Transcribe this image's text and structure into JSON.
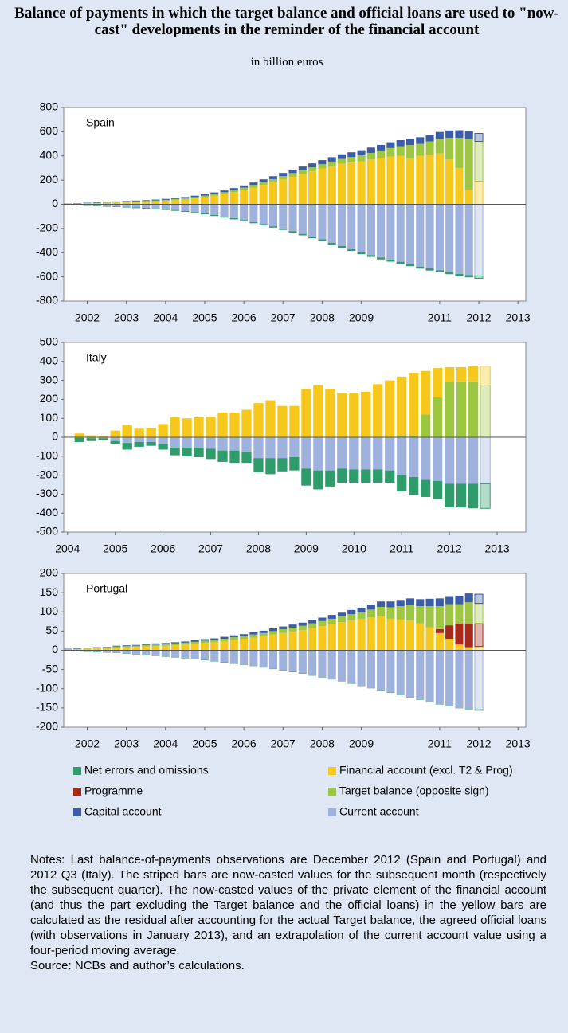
{
  "title": "Balance of payments in which the target balance and official loans are used to \"now-cast\" developments in the reminder of the financial account",
  "subtitle": "in billion euros",
  "notes": "Notes: Last balance-of-payments observations are December 2012 (Spain and Portugal) and 2012 Q3 (Italy). The striped bars are now-casted values for the subsequent month (respectively the subsequent quarter). The now-casted values of the private element of the financial account (and thus the part excluding the Target balance and the official loans) in the yellow bars are calculated as the residual after accounting for the actual Target balance, the agreed official loans (with observations in January 2013), and an extrapolation of the current account value using a four-period moving average.",
  "source": "Source: NCBs and author’s calculations.",
  "chart_data": [
    {
      "type": "bar",
      "label": "Spain",
      "x": [
        2001.5,
        2001.75,
        2002,
        2002.25,
        2002.5,
        2002.75,
        2003,
        2003.25,
        2003.5,
        2003.75,
        2004,
        2004.25,
        2004.5,
        2004.75,
        2005,
        2005.25,
        2005.5,
        2005.75,
        2006,
        2006.25,
        2006.5,
        2006.75,
        2007,
        2007.25,
        2007.5,
        2007.75,
        2008,
        2008.25,
        2008.5,
        2008.75,
        2009,
        2009.25,
        2009.5,
        2009.75,
        2010,
        2010.25,
        2010.5,
        2010.75,
        2011,
        2011.25,
        2011.5,
        2011.75,
        2012
      ],
      "xlim": [
        2001.4,
        2013.2
      ],
      "xticks": [
        2002,
        2003,
        2004,
        2005,
        2006,
        2007,
        2008,
        2009,
        2011,
        2012,
        2013
      ],
      "ylim": [
        -800,
        800
      ],
      "yticks": [
        -800,
        -600,
        -400,
        -200,
        0,
        200,
        400,
        600,
        800
      ],
      "series": [
        {
          "color": "#f7c81c",
          "values": [
            5,
            6,
            8,
            10,
            12,
            14,
            16,
            18,
            20,
            24,
            28,
            34,
            40,
            48,
            58,
            70,
            84,
            100,
            118,
            138,
            160,
            182,
            205,
            228,
            250,
            272,
            295,
            315,
            335,
            345,
            355,
            370,
            385,
            395,
            400,
            380,
            400,
            410,
            420,
            370,
            300,
            120,
            190
          ]
        },
        {
          "color": "#9dc641",
          "values": [
            0,
            0,
            2,
            3,
            4,
            5,
            6,
            7,
            8,
            8,
            9,
            10,
            10,
            12,
            14,
            15,
            16,
            18,
            20,
            22,
            24,
            26,
            28,
            30,
            32,
            34,
            36,
            38,
            40,
            45,
            50,
            55,
            60,
            70,
            80,
            110,
            100,
            110,
            120,
            180,
            250,
            420,
            330
          ]
        },
        {
          "color": "#3b5ca9",
          "values": [
            2,
            3,
            3,
            4,
            4,
            5,
            5,
            6,
            6,
            7,
            8,
            9,
            10,
            11,
            12,
            13,
            14,
            16,
            18,
            20,
            22,
            24,
            26,
            28,
            30,
            32,
            34,
            36,
            38,
            40,
            42,
            44,
            46,
            48,
            50,
            52,
            54,
            56,
            58,
            60,
            62,
            64,
            66
          ]
        },
        {
          "color": "#9fb2de",
          "values": [
            -3,
            -6,
            -9,
            -12,
            -15,
            -18,
            -22,
            -26,
            -30,
            -35,
            -40,
            -47,
            -55,
            -64,
            -75,
            -88,
            -101,
            -115,
            -130,
            -147,
            -164,
            -182,
            -200,
            -222,
            -245,
            -268,
            -290,
            -318,
            -345,
            -372,
            -398,
            -420,
            -440,
            -458,
            -475,
            -495,
            -515,
            -530,
            -545,
            -560,
            -575,
            -585,
            -592
          ]
        },
        {
          "color": "#2f9c6c",
          "values": [
            -3,
            -3,
            -4,
            -4,
            -5,
            -5,
            -5,
            -6,
            -6,
            -6,
            -7,
            -7,
            -8,
            -8,
            -8,
            -9,
            -9,
            -10,
            -10,
            -10,
            -11,
            -11,
            -12,
            -12,
            -12,
            -13,
            -13,
            -14,
            -14,
            -14,
            -15,
            -15,
            -16,
            -16,
            -16,
            -17,
            -17,
            -18,
            -18,
            -18,
            -19,
            -19,
            -20
          ]
        }
      ]
    },
    {
      "type": "bar",
      "label": "Italy",
      "x": [
        2004.25,
        2004.5,
        2004.75,
        2005,
        2005.25,
        2005.5,
        2005.75,
        2006,
        2006.25,
        2006.5,
        2006.75,
        2007,
        2007.25,
        2007.5,
        2007.75,
        2008,
        2008.25,
        2008.5,
        2008.75,
        2009,
        2009.25,
        2009.5,
        2009.75,
        2010,
        2010.25,
        2010.5,
        2010.75,
        2011,
        2011.25,
        2011.5,
        2011.75,
        2012,
        2012.25,
        2012.5,
        2012.75
      ],
      "xlim": [
        2003.92,
        2013.6
      ],
      "xticks": [
        2004,
        2005,
        2006,
        2007,
        2008,
        2009,
        2010,
        2011,
        2012,
        2013
      ],
      "ylim": [
        -500,
        500
      ],
      "yticks": [
        -500,
        -400,
        -300,
        -200,
        -100,
        0,
        100,
        200,
        300,
        400,
        500
      ],
      "series": [
        {
          "color": "#9dc641",
          "values": [
            0,
            0,
            0,
            0,
            0,
            0,
            0,
            0,
            0,
            0,
            0,
            0,
            0,
            0,
            0,
            0,
            0,
            0,
            0,
            0,
            0,
            0,
            0,
            0,
            0,
            0,
            0,
            10,
            10,
            120,
            210,
            290,
            295,
            295,
            275
          ]
        },
        {
          "color": "#f7c81c",
          "values": [
            20,
            10,
            8,
            35,
            65,
            45,
            50,
            70,
            105,
            100,
            105,
            110,
            130,
            130,
            145,
            180,
            195,
            165,
            165,
            255,
            275,
            255,
            235,
            235,
            240,
            280,
            300,
            310,
            330,
            230,
            155,
            80,
            75,
            80,
            100
          ]
        },
        {
          "color": "#9fb2de",
          "values": [
            -3,
            -5,
            -5,
            -20,
            -30,
            -25,
            -25,
            -35,
            -55,
            -55,
            -55,
            -60,
            -70,
            -70,
            -75,
            -110,
            -110,
            -110,
            -105,
            -165,
            -175,
            -175,
            -165,
            -170,
            -170,
            -170,
            -175,
            -200,
            -210,
            -225,
            -230,
            -245,
            -245,
            -245,
            -245
          ]
        },
        {
          "color": "#2f9c6c",
          "values": [
            -22,
            -15,
            -10,
            -15,
            -35,
            -25,
            -20,
            -30,
            -40,
            -45,
            -50,
            -55,
            -60,
            -65,
            -60,
            -75,
            -85,
            -70,
            -70,
            -90,
            -100,
            -85,
            -75,
            -70,
            -70,
            -70,
            -65,
            -85,
            -95,
            -90,
            -95,
            -125,
            -125,
            -130,
            -130
          ]
        }
      ]
    },
    {
      "type": "bar",
      "label": "Portugal",
      "x": [
        2001.5,
        2001.75,
        2002,
        2002.25,
        2002.5,
        2002.75,
        2003,
        2003.25,
        2003.5,
        2003.75,
        2004,
        2004.25,
        2004.5,
        2004.75,
        2005,
        2005.25,
        2005.5,
        2005.75,
        2006,
        2006.25,
        2006.5,
        2006.75,
        2007,
        2007.25,
        2007.5,
        2007.75,
        2008,
        2008.25,
        2008.5,
        2008.75,
        2009,
        2009.25,
        2009.5,
        2009.75,
        2010,
        2010.25,
        2010.5,
        2010.75,
        2011,
        2011.25,
        2011.5,
        2011.75,
        2012
      ],
      "xlim": [
        2001.4,
        2013.2
      ],
      "xticks": [
        2002,
        2003,
        2004,
        2005,
        2006,
        2007,
        2008,
        2009,
        2011,
        2012,
        2013
      ],
      "ylim": [
        -200,
        200
      ],
      "yticks": [
        -200,
        -150,
        -100,
        -50,
        0,
        50,
        100,
        150,
        200
      ],
      "series": [
        {
          "name": "Financial account (excl. T2 & Prog)",
          "color": "#f7c81c",
          "values": [
            2,
            3,
            4,
            5,
            6,
            7,
            8,
            9,
            10,
            11,
            12,
            13,
            15,
            17,
            19,
            21,
            24,
            27,
            30,
            33,
            37,
            41,
            45,
            49,
            53,
            58,
            63,
            68,
            73,
            78,
            82,
            86,
            88,
            82,
            80,
            78,
            70,
            60,
            45,
            30,
            15,
            8,
            10
          ]
        },
        {
          "name": "Programme",
          "color": "#a8281c",
          "values": [
            0,
            0,
            0,
            0,
            0,
            0,
            0,
            0,
            0,
            0,
            0,
            0,
            0,
            0,
            0,
            0,
            0,
            0,
            0,
            0,
            0,
            0,
            0,
            0,
            0,
            0,
            0,
            0,
            0,
            0,
            0,
            0,
            0,
            0,
            0,
            0,
            0,
            0,
            10,
            35,
            55,
            62,
            60
          ]
        },
        {
          "name": "Target balance (opposite sign)",
          "color": "#9dc641",
          "values": [
            1,
            1,
            2,
            2,
            2,
            3,
            3,
            3,
            4,
            4,
            4,
            5,
            5,
            5,
            6,
            6,
            6,
            7,
            7,
            8,
            8,
            9,
            10,
            10,
            11,
            12,
            13,
            14,
            15,
            16,
            17,
            20,
            25,
            30,
            35,
            40,
            45,
            55,
            60,
            55,
            50,
            55,
            52
          ]
        },
        {
          "name": "Capital account",
          "color": "#3b5ca9",
          "values": [
            1,
            1,
            1,
            1,
            1,
            2,
            2,
            2,
            2,
            3,
            3,
            3,
            3,
            4,
            4,
            4,
            5,
            5,
            5,
            6,
            6,
            7,
            7,
            8,
            8,
            9,
            9,
            10,
            10,
            11,
            12,
            13,
            14,
            15,
            16,
            17,
            18,
            19,
            20,
            21,
            22,
            23,
            24
          ]
        },
        {
          "name": "Current account",
          "color": "#9fb2de",
          "values": [
            -1,
            -2,
            -3,
            -4,
            -5,
            -6,
            -8,
            -10,
            -12,
            -14,
            -16,
            -18,
            -20,
            -22,
            -25,
            -28,
            -31,
            -34,
            -37,
            -40,
            -44,
            -48,
            -52,
            -56,
            -60,
            -65,
            -70,
            -75,
            -80,
            -86,
            -92,
            -98,
            -104,
            -110,
            -116,
            -122,
            -128,
            -134,
            -140,
            -145,
            -150,
            -153,
            -155
          ]
        },
        {
          "name": "Net errors and omissions",
          "color": "#2f9c6c",
          "values": [
            -1,
            -1,
            -1,
            -1,
            -1,
            -1,
            -1,
            -1,
            -1,
            -1,
            -1,
            -1,
            -1,
            -1,
            -1,
            -1,
            -1,
            -1,
            -1,
            -1,
            -1,
            -1,
            -1,
            -1,
            -1,
            -1,
            -1,
            -1,
            -1,
            -1,
            -1,
            -1,
            -1,
            -1,
            -1,
            -1,
            -1,
            -1,
            -1,
            -1,
            -1,
            -1,
            -1
          ]
        }
      ]
    }
  ]
}
